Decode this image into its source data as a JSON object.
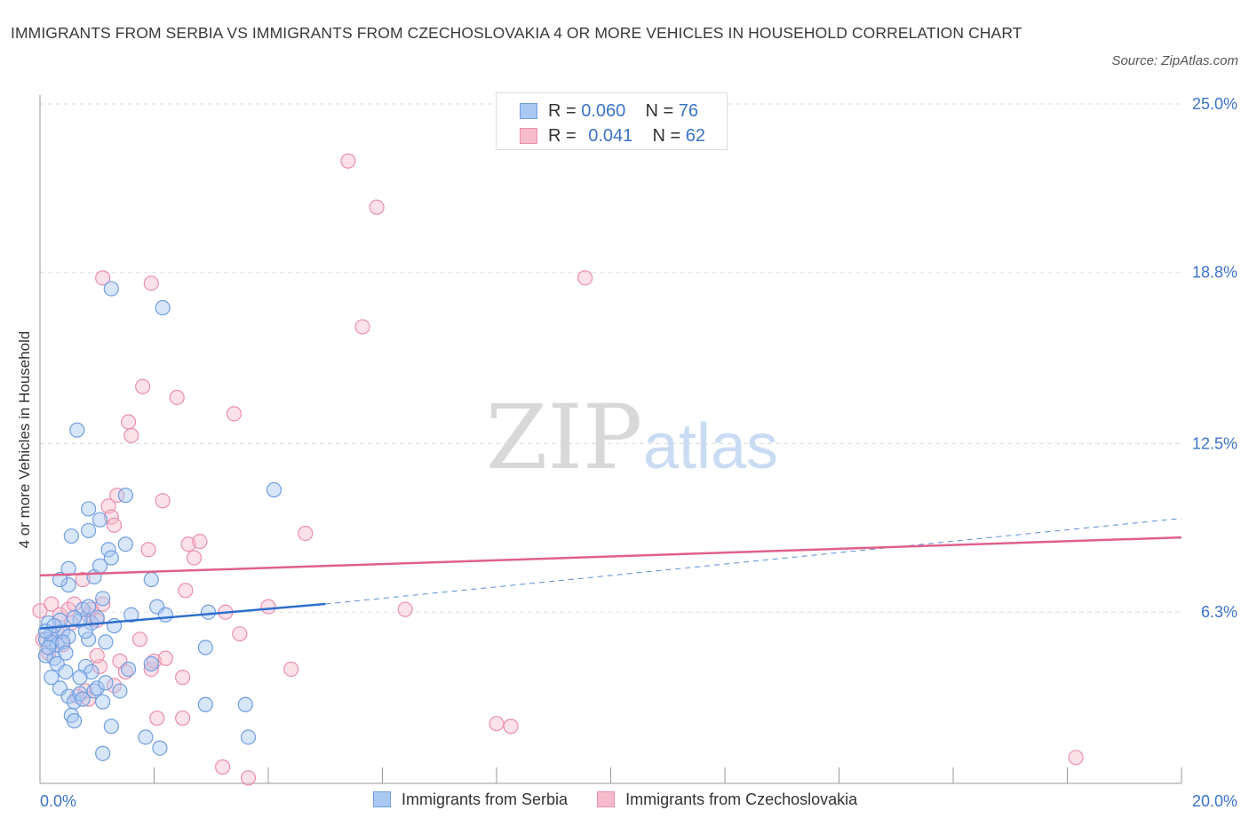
{
  "header": {
    "title": "IMMIGRANTS FROM SERBIA VS IMMIGRANTS FROM CZECHOSLOVAKIA 4 OR MORE VEHICLES IN HOUSEHOLD CORRELATION CHART",
    "source": "Source: ZipAtlas.com"
  },
  "watermark": {
    "zip": "ZIP",
    "atlas": "atlas"
  },
  "colors": {
    "serbia_fill": "#a9c8f2",
    "serbia_stroke": "#6f9ee0",
    "serbia_line": "#2f6fcc",
    "czech_fill": "#f6bccd",
    "czech_stroke": "#ea8fac",
    "czech_line": "#e0608a",
    "tick_label": "#3b73c8",
    "grid": "#dddddd"
  },
  "legend": {
    "serbia": {
      "r_label": "R =",
      "r_value": "0.060",
      "n_label": "N =",
      "n_value": "76"
    },
    "czech": {
      "r_label": "R =",
      "r_value": "0.041",
      "n_label": "N =",
      "n_value": "62"
    }
  },
  "chart_data": {
    "type": "scatter",
    "title": "IMMIGRANTS FROM SERBIA VS IMMIGRANTS FROM CZECHOSLOVAKIA 4 OR MORE VEHICLES IN HOUSEHOLD CORRELATION CHART",
    "xlabel": "",
    "ylabel": "4 or more Vehicles in Household",
    "xlim": [
      0,
      20
    ],
    "ylim": [
      0,
      25
    ],
    "x_tick_labels": [
      {
        "value": 0,
        "label": "0.0%"
      },
      {
        "value": 20,
        "label": "20.0%"
      }
    ],
    "y_tick_labels": [
      {
        "value": 6.3,
        "label": "6.3%"
      },
      {
        "value": 12.5,
        "label": "12.5%"
      },
      {
        "value": 18.8,
        "label": "18.8%"
      },
      {
        "value": 25.0,
        "label": "25.0%"
      }
    ],
    "series": [
      {
        "name": "Immigrants from Serbia",
        "R": 0.06,
        "N": 76,
        "trend": {
          "x0": 0,
          "y0": 5.7,
          "x1": 5.0,
          "y1": 6.6,
          "dashed_to_x": 20,
          "dashed_to_y": 9.75
        },
        "points": [
          [
            0.1,
            5.3
          ],
          [
            0.2,
            5.5
          ],
          [
            0.15,
            5.9
          ],
          [
            0.3,
            5.1
          ],
          [
            0.25,
            4.6
          ],
          [
            0.4,
            5.6
          ],
          [
            0.35,
            6.0
          ],
          [
            0.5,
            5.4
          ],
          [
            0.2,
            5.2
          ],
          [
            0.1,
            4.7
          ],
          [
            0.3,
            4.4
          ],
          [
            0.45,
            4.1
          ],
          [
            0.35,
            3.5
          ],
          [
            0.5,
            3.2
          ],
          [
            0.6,
            3.0
          ],
          [
            0.55,
            2.5
          ],
          [
            0.6,
            2.3
          ],
          [
            0.7,
            3.3
          ],
          [
            0.75,
            3.1
          ],
          [
            0.8,
            4.3
          ],
          [
            0.9,
            4.1
          ],
          [
            0.95,
            3.4
          ],
          [
            1.0,
            3.5
          ],
          [
            1.1,
            3.0
          ],
          [
            1.15,
            3.7
          ],
          [
            1.25,
            2.1
          ],
          [
            1.4,
            3.4
          ],
          [
            1.55,
            4.2
          ],
          [
            1.85,
            1.7
          ],
          [
            2.1,
            1.3
          ],
          [
            1.1,
            1.1
          ],
          [
            2.9,
            2.9
          ],
          [
            3.6,
            2.9
          ],
          [
            3.65,
            1.7
          ],
          [
            2.9,
            5.0
          ],
          [
            1.95,
            4.4
          ],
          [
            0.85,
            5.3
          ],
          [
            0.9,
            5.9
          ],
          [
            1.0,
            6.1
          ],
          [
            0.7,
            6.0
          ],
          [
            0.75,
            6.4
          ],
          [
            0.8,
            5.6
          ],
          [
            0.85,
            6.5
          ],
          [
            1.1,
            6.8
          ],
          [
            1.3,
            5.8
          ],
          [
            1.6,
            6.2
          ],
          [
            2.05,
            6.5
          ],
          [
            2.2,
            6.2
          ],
          [
            0.5,
            7.3
          ],
          [
            0.5,
            7.9
          ],
          [
            0.35,
            7.5
          ],
          [
            0.95,
            7.6
          ],
          [
            1.05,
            8.0
          ],
          [
            1.2,
            8.6
          ],
          [
            1.25,
            8.3
          ],
          [
            1.5,
            8.8
          ],
          [
            1.95,
            7.5
          ],
          [
            0.55,
            9.1
          ],
          [
            0.85,
            9.3
          ],
          [
            1.05,
            9.7
          ],
          [
            0.85,
            10.1
          ],
          [
            1.5,
            10.6
          ],
          [
            0.65,
            13.0
          ],
          [
            2.15,
            17.5
          ],
          [
            1.25,
            18.2
          ],
          [
            4.1,
            10.8
          ],
          [
            2.95,
            6.3
          ],
          [
            0.15,
            5.0
          ],
          [
            0.2,
            3.9
          ],
          [
            0.1,
            5.6
          ],
          [
            0.4,
            5.2
          ],
          [
            0.6,
            6.1
          ],
          [
            0.7,
            3.9
          ],
          [
            1.15,
            5.2
          ],
          [
            0.45,
            4.8
          ],
          [
            0.25,
            5.8
          ]
        ]
      },
      {
        "name": "Immigrants from Czechoslovakia",
        "R": 0.041,
        "N": 62,
        "trend": {
          "x0": 0,
          "y0": 7.65,
          "x1": 20,
          "y1": 9.05
        },
        "points": [
          [
            0.0,
            6.35
          ],
          [
            0.05,
            5.3
          ],
          [
            0.2,
            6.6
          ],
          [
            0.3,
            5.6
          ],
          [
            0.35,
            6.2
          ],
          [
            0.5,
            6.4
          ],
          [
            0.6,
            6.6
          ],
          [
            0.75,
            7.5
          ],
          [
            0.85,
            6.2
          ],
          [
            0.9,
            6.4
          ],
          [
            1.0,
            6.0
          ],
          [
            0.8,
            3.4
          ],
          [
            0.85,
            3.1
          ],
          [
            1.05,
            4.3
          ],
          [
            1.1,
            6.6
          ],
          [
            1.2,
            10.2
          ],
          [
            1.25,
            9.8
          ],
          [
            1.3,
            9.5
          ],
          [
            1.35,
            10.6
          ],
          [
            1.6,
            12.8
          ],
          [
            1.55,
            13.3
          ],
          [
            1.8,
            14.6
          ],
          [
            1.9,
            8.6
          ],
          [
            1.95,
            4.2
          ],
          [
            2.0,
            4.5
          ],
          [
            2.05,
            2.4
          ],
          [
            2.15,
            10.4
          ],
          [
            2.4,
            14.2
          ],
          [
            2.5,
            3.9
          ],
          [
            2.55,
            7.1
          ],
          [
            2.6,
            8.8
          ],
          [
            2.7,
            8.3
          ],
          [
            2.8,
            8.9
          ],
          [
            3.2,
            0.6
          ],
          [
            3.25,
            6.3
          ],
          [
            3.4,
            13.6
          ],
          [
            3.5,
            5.5
          ],
          [
            3.65,
            0.2
          ],
          [
            4.0,
            6.5
          ],
          [
            4.4,
            4.2
          ],
          [
            4.65,
            9.2
          ],
          [
            2.5,
            2.4
          ],
          [
            5.4,
            22.9
          ],
          [
            5.65,
            16.8
          ],
          [
            5.9,
            21.2
          ],
          [
            6.4,
            6.4
          ],
          [
            8.0,
            2.2
          ],
          [
            8.25,
            2.1
          ],
          [
            9.55,
            18.6
          ],
          [
            18.15,
            0.95
          ],
          [
            1.1,
            18.6
          ],
          [
            1.95,
            18.4
          ],
          [
            1.4,
            4.5
          ],
          [
            1.75,
            5.3
          ],
          [
            1.5,
            4.1
          ],
          [
            0.4,
            5.1
          ],
          [
            0.55,
            5.9
          ],
          [
            1.0,
            4.7
          ],
          [
            0.15,
            4.8
          ],
          [
            1.3,
            3.6
          ],
          [
            0.65,
            3.2
          ],
          [
            2.2,
            4.6
          ]
        ]
      }
    ]
  }
}
